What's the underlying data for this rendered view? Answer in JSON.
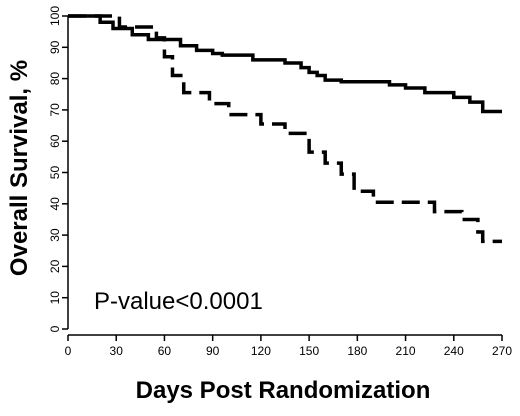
{
  "chart_data": {
    "type": "line",
    "subtype": "kaplan-meier step curves",
    "title": "",
    "xlabel": "Days Post Randomization",
    "ylabel": "Overall Survival, %",
    "xlim": [
      0,
      270
    ],
    "ylim": [
      0,
      100
    ],
    "xticks": [
      0,
      30,
      60,
      90,
      120,
      150,
      180,
      210,
      240,
      270
    ],
    "yticks": [
      0,
      10,
      20,
      30,
      40,
      50,
      60,
      70,
      80,
      90,
      100
    ],
    "grid": false,
    "legend": "none",
    "annotation": "P-value<0.0001",
    "series": [
      {
        "style": "solid",
        "color": "#000000",
        "steps": [
          [
            0,
            100
          ],
          [
            20,
            98
          ],
          [
            28,
            96
          ],
          [
            40,
            94
          ],
          [
            50,
            92.5
          ],
          [
            70,
            90.5
          ],
          [
            80,
            89
          ],
          [
            90,
            88
          ],
          [
            96,
            87.5
          ],
          [
            115,
            86
          ],
          [
            135,
            85
          ],
          [
            145,
            83.5
          ],
          [
            150,
            82
          ],
          [
            155,
            81
          ],
          [
            160,
            79.5
          ],
          [
            170,
            79
          ],
          [
            200,
            78
          ],
          [
            210,
            77
          ],
          [
            222,
            75.5
          ],
          [
            240,
            74
          ],
          [
            250,
            72.5
          ],
          [
            258,
            69.5
          ],
          [
            270,
            69.5
          ]
        ]
      },
      {
        "style": "dashed",
        "color": "#000000",
        "steps": [
          [
            0,
            100
          ],
          [
            32,
            96.5
          ],
          [
            55,
            93
          ],
          [
            60,
            87
          ],
          [
            65,
            81
          ],
          [
            72,
            75.5
          ],
          [
            88,
            72
          ],
          [
            100,
            68.5
          ],
          [
            120,
            65.5
          ],
          [
            135,
            62.5
          ],
          [
            150,
            56.5
          ],
          [
            160,
            53
          ],
          [
            170,
            49.5
          ],
          [
            178,
            44
          ],
          [
            190,
            40.5
          ],
          [
            228,
            37.5
          ],
          [
            245,
            35
          ],
          [
            255,
            31
          ],
          [
            258,
            28
          ],
          [
            270,
            28
          ]
        ]
      }
    ]
  }
}
